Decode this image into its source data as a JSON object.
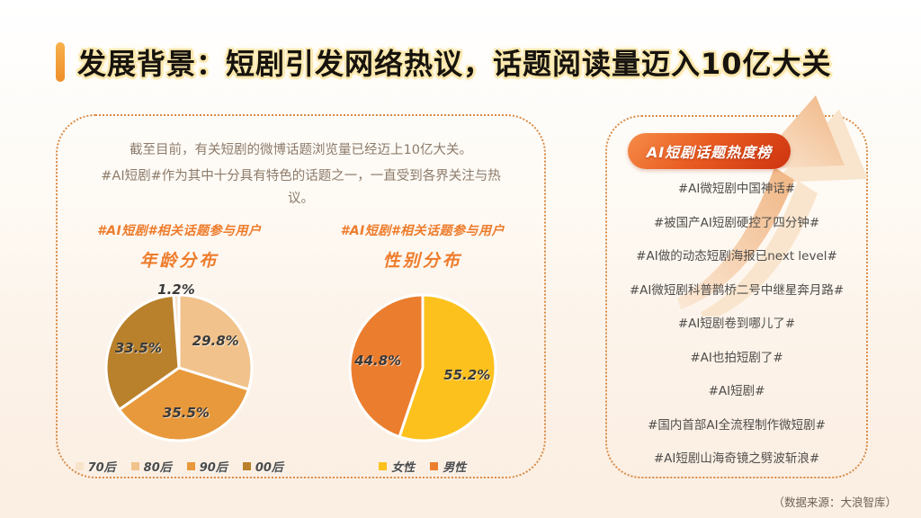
{
  "page": {
    "title": "发展背景：短剧引发网络热议，话题阅读量迈入10亿大关",
    "source_note": "（数据来源：大浪智库）"
  },
  "intro": {
    "line1": "截至目前，有关短剧的微博话题浏览量已经迈上10亿大关。",
    "line2": "#AI短剧#作为其中十分具有特色的话题之一，一直受到各界关注与热议。"
  },
  "colors": {
    "accent_orange": "#ee7c2c",
    "title_glow": "#fbe8ad",
    "panel_border": "#d98a45",
    "badge_gradient_start": "#f68c48",
    "badge_gradient_end": "#ce330f",
    "arrow_fill": "#f1ba87",
    "background_bottom": "#fbeee2"
  },
  "chart_data": [
    {
      "type": "pie",
      "title": "#AI短剧#相关话题参与用户",
      "subtitle": "年龄分布",
      "labels": [
        "70后",
        "80后",
        "90后",
        "00后"
      ],
      "values": [
        1.2,
        29.8,
        35.5,
        33.5
      ],
      "colors": [
        "#f7e3cb",
        "#f1c28b",
        "#e8993b",
        "#b9812c"
      ],
      "legend_position": "bottom",
      "first_slice_starts_before_top": true
    },
    {
      "type": "pie",
      "title": "#AI短剧#相关话题参与用户",
      "subtitle": "性别分布",
      "labels": [
        "女性",
        "男性"
      ],
      "values": [
        55.2,
        44.8
      ],
      "colors": [
        "#fcc11d",
        "#eb7d2e"
      ],
      "legend_position": "bottom",
      "first_slice_starts_before_top": false
    }
  ],
  "hot_list": {
    "badge": "AI短剧话题热度榜",
    "items": [
      "#AI微短剧中国神话#",
      "#被国产AI短剧硬控了四分钟#",
      "#AI做的动态短剧海报已next level#",
      "#AI微短剧科普鹊桥二号中继星奔月路#",
      "#AI短剧卷到哪儿了#",
      "#AI也拍短剧了#",
      "#AI短剧#",
      "#国内首部AI全流程制作微短剧#",
      "#AI短剧山海奇镜之劈波斩浪#"
    ]
  }
}
